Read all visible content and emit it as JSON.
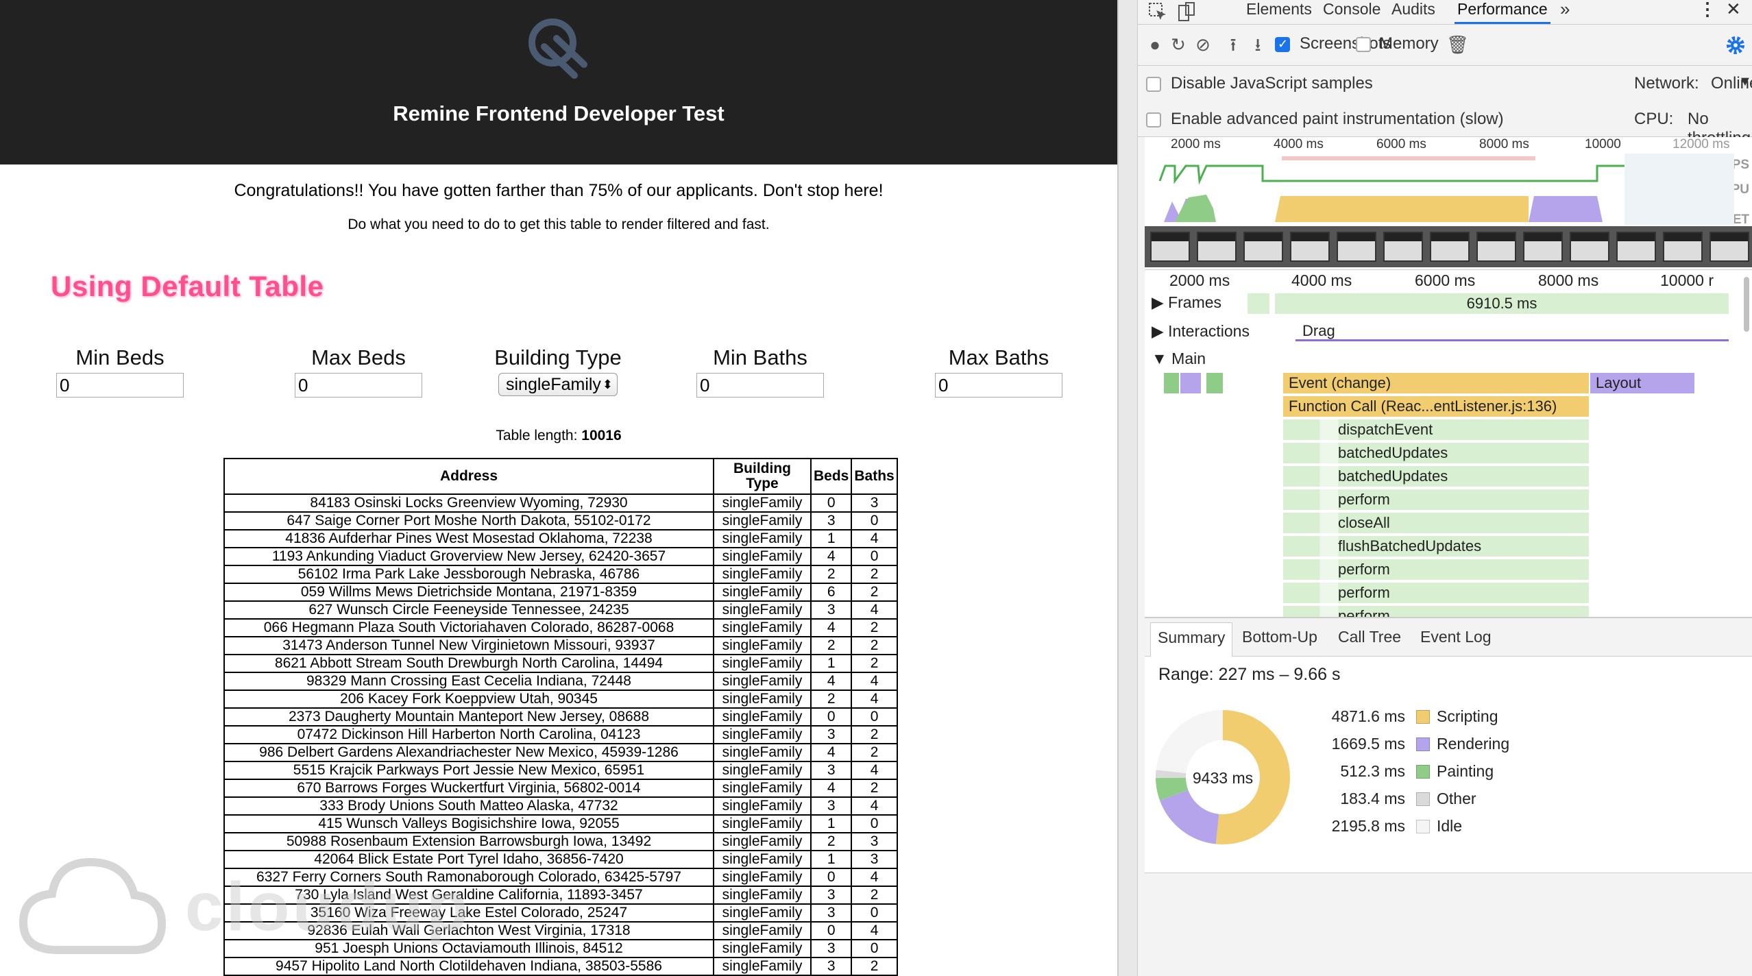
{
  "app": {
    "title": "Remine Frontend Developer Test",
    "congrats": "Congratulations!! You have gotten farther than 75% of our applicants. Don't stop here!",
    "instructions": "Do what you need to do to get this table to render filtered and fast.",
    "section_heading": "Using Default Table",
    "filters": {
      "min_beds": {
        "label": "Min Beds",
        "value": "0"
      },
      "max_beds": {
        "label": "Max Beds",
        "value": "0"
      },
      "building_type": {
        "label": "Building Type",
        "value": "singleFamily"
      },
      "min_baths": {
        "label": "Min Baths",
        "value": "0"
      },
      "max_baths": {
        "label": "Max Baths",
        "value": "0"
      }
    },
    "table_length_label": "Table length:",
    "table_length_value": "10016",
    "table": {
      "headers": [
        "Address",
        "Building Type",
        "Beds",
        "Baths"
      ],
      "rows": [
        [
          "84183 Osinski Locks Greenview Wyoming, 72930",
          "singleFamily",
          "0",
          "3"
        ],
        [
          "647 Saige Corner Port Moshe North Dakota, 55102-0172",
          "singleFamily",
          "3",
          "0"
        ],
        [
          "41836 Aufderhar Pines West Mosestad Oklahoma, 72238",
          "singleFamily",
          "1",
          "4"
        ],
        [
          "1193 Ankunding Viaduct Groverview New Jersey, 62420-3657",
          "singleFamily",
          "4",
          "0"
        ],
        [
          "56102 Irma Park Lake Jessborough Nebraska, 46786",
          "singleFamily",
          "2",
          "2"
        ],
        [
          "059 Willms Mews Dietrichside Montana, 21971-8359",
          "singleFamily",
          "6",
          "2"
        ],
        [
          "627 Wunsch Circle Feeneyside Tennessee, 24235",
          "singleFamily",
          "3",
          "4"
        ],
        [
          "066 Hegmann Plaza South Victoriahaven Colorado, 86287-0068",
          "singleFamily",
          "4",
          "2"
        ],
        [
          "31473 Anderson Tunnel New Virginietown Missouri, 93937",
          "singleFamily",
          "2",
          "2"
        ],
        [
          "8621 Abbott Stream South Drewburgh North Carolina, 14494",
          "singleFamily",
          "1",
          "2"
        ],
        [
          "98329 Mann Crossing East Cecelia Indiana, 72448",
          "singleFamily",
          "4",
          "4"
        ],
        [
          "206 Kacey Fork Koeppview Utah, 90345",
          "singleFamily",
          "2",
          "4"
        ],
        [
          "2373 Daugherty Mountain Manteport New Jersey, 08688",
          "singleFamily",
          "0",
          "0"
        ],
        [
          "07472 Dickinson Hill Harberton North Carolina, 04123",
          "singleFamily",
          "3",
          "2"
        ],
        [
          "986 Delbert Gardens Alexandriachester New Mexico, 45939-1286",
          "singleFamily",
          "4",
          "2"
        ],
        [
          "5515 Krajcik Parkways Port Jessie New Mexico, 65951",
          "singleFamily",
          "3",
          "4"
        ],
        [
          "670 Barrows Forges Wuckertfurt Virginia, 56802-0014",
          "singleFamily",
          "4",
          "2"
        ],
        [
          "333 Brody Unions South Matteo Alaska, 47732",
          "singleFamily",
          "3",
          "4"
        ],
        [
          "415 Wunsch Valleys Bogisichshire Iowa, 92055",
          "singleFamily",
          "1",
          "0"
        ],
        [
          "50988 Rosenbaum Extension Barrowsburgh Iowa, 13492",
          "singleFamily",
          "2",
          "3"
        ],
        [
          "42064 Blick Estate Port Tyrel Idaho, 36856-7420",
          "singleFamily",
          "1",
          "3"
        ],
        [
          "6327 Ferry Corners South Ramonaborough Colorado, 63425-5797",
          "singleFamily",
          "0",
          "4"
        ],
        [
          "730 Lyla Island West Geraldine California, 11893-3457",
          "singleFamily",
          "3",
          "2"
        ],
        [
          "35160 Wiza Freeway Lake Estel Colorado, 25247",
          "singleFamily",
          "3",
          "0"
        ],
        [
          "92836 Eulah Wall Gerlachton West Virginia, 17318",
          "singleFamily",
          "0",
          "4"
        ],
        [
          "951 Joesph Unions Octaviamouth Illinois, 84512",
          "singleFamily",
          "3",
          "0"
        ],
        [
          "9457 Hipolito Land North Clotildehaven Indiana, 38503-5586",
          "singleFamily",
          "3",
          "2"
        ]
      ]
    },
    "watermark": "cloudup"
  },
  "devtools": {
    "tabs": [
      "Elements",
      "Console",
      "Audits",
      "Performance"
    ],
    "more_tabs": "»",
    "toolbar": {
      "screenshots_label": "Screenshots",
      "screenshots_checked": true,
      "memory_label": "Memory",
      "memory_checked": false
    },
    "settings": {
      "disable_js_samples": "Disable JavaScript samples",
      "advanced_paint": "Enable advanced paint instrumentation (slow)",
      "network_label": "Network:",
      "network_value": "Online",
      "cpu_label": "CPU:",
      "cpu_value": "No throttling"
    },
    "overview": {
      "ticks": [
        "2000 ms",
        "4000 ms",
        "6000 ms",
        "8000 ms",
        "10000",
        "12000 ms"
      ],
      "side_labels": [
        "FPS",
        "CPU",
        "NET"
      ]
    },
    "flame": {
      "ticks": [
        "2000 ms",
        "4000 ms",
        "6000 ms",
        "8000 ms",
        "10000 r"
      ],
      "frames_label": "Frames",
      "frames_value": "6910.5 ms",
      "interactions_label": "Interactions",
      "interactions_value": "Drag",
      "main_label": "Main",
      "event_label": "Event (change)",
      "layout_label": "Layout",
      "function_call": "Function Call (Reac...entListener.js:136)",
      "stack": [
        "dispatchEvent",
        "batchedUpdates",
        "batchedUpdates",
        "perform",
        "closeAll",
        "flushBatchedUpdates",
        "perform",
        "perform",
        "perform"
      ]
    },
    "summary": {
      "tabs": [
        "Summary",
        "Bottom-Up",
        "Call Tree",
        "Event Log"
      ],
      "range": "Range: 227 ms – 9.66 s",
      "total": "9433 ms",
      "items": [
        {
          "value": "4871.6 ms",
          "label": "Scripting",
          "ms": 4871.6,
          "color": "#f2cd70"
        },
        {
          "value": "1669.5 ms",
          "label": "Rendering",
          "ms": 1669.5,
          "color": "#b5a3ec"
        },
        {
          "value": "512.3 ms",
          "label": "Painting",
          "ms": 512.3,
          "color": "#8fcc87"
        },
        {
          "value": "183.4 ms",
          "label": "Other",
          "ms": 183.4,
          "color": "#dadada"
        },
        {
          "value": "2195.8 ms",
          "label": "Idle",
          "ms": 2195.8,
          "color": "#f5f5f5"
        }
      ]
    }
  }
}
